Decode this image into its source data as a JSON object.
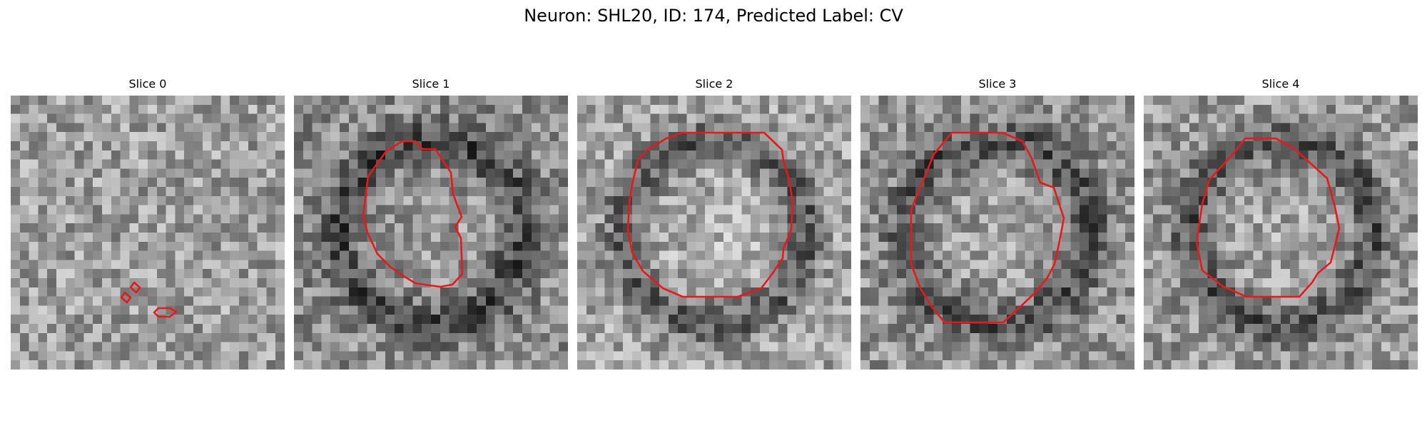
{
  "figure": {
    "title": "Neuron: SHL20, ID: 174, Predicted Label: CV",
    "contour_color": "#e8191a"
  },
  "panels": [
    {
      "title": "Slice 0"
    },
    {
      "title": "Slice 1"
    },
    {
      "title": "Slice 2"
    },
    {
      "title": "Slice 3"
    },
    {
      "title": "Slice 4"
    }
  ]
}
